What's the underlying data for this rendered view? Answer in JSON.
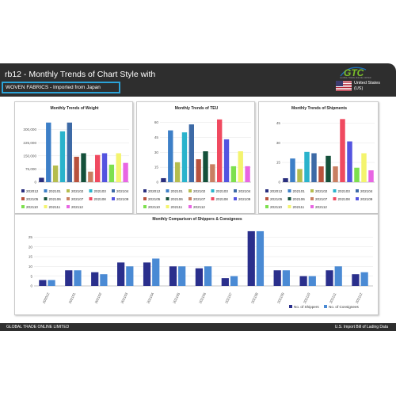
{
  "header": {
    "title": "rb12 - Monthly Trends of Chart Style with",
    "subtitle": "WOVEN FABRICS - Imported from Japan",
    "logo_text": "GTC",
    "logo_tagline": "GLOBAL TRADE ONLINE LIMITED",
    "country_line1": "United States",
    "country_line2": "(US)"
  },
  "footer": {
    "left": "GLOBAL TRADE ONLINE LIMITED",
    "right": "U.S. Import Bill of Lading Data"
  },
  "colors": {
    "header_bg": "#2e2e2e",
    "subtitle_border": "#2ba3d8",
    "logo_green": "#7bbf2a",
    "logo_blue": "#1f6fb5"
  },
  "chart_data": [
    {
      "type": "bar",
      "title": "Monthly Trends of Weight",
      "categories": [
        "202012",
        "202101",
        "202102",
        "202103",
        "202104",
        "202105",
        "202106",
        "202107",
        "202108",
        "202109",
        "202110",
        "202111",
        "202112"
      ],
      "colors": [
        "#2a2f7e",
        "#3d7fc7",
        "#b5bd4e",
        "#2ab3cc",
        "#3d6aa6",
        "#b8523d",
        "#14503a",
        "#c97f62",
        "#f04a60",
        "#5454e0",
        "#7de04e",
        "#f4f46e",
        "#e866e3"
      ],
      "values": [
        25000,
        340000,
        95000,
        290000,
        340000,
        145000,
        165000,
        60000,
        155000,
        165000,
        100000,
        165000,
        110000
      ],
      "ylim": [
        0,
        375000
      ],
      "yticks": [
        0,
        75000,
        150000,
        225000,
        300000
      ],
      "ytick_labels": [
        "0",
        "75,000",
        "150,000",
        "225,000",
        "300,000"
      ]
    },
    {
      "type": "bar",
      "title": "Monthly Trends of TEU",
      "categories": [
        "202012",
        "202101",
        "202102",
        "202103",
        "202104",
        "202105",
        "202106",
        "202107",
        "202108",
        "202109",
        "202110",
        "202111",
        "202112"
      ],
      "colors": [
        "#2a2f7e",
        "#3d7fc7",
        "#b5bd4e",
        "#2ab3cc",
        "#3d6aa6",
        "#b8523d",
        "#14503a",
        "#c97f62",
        "#f04a60",
        "#5454e0",
        "#7de04e",
        "#f4f46e",
        "#e866e3"
      ],
      "values": [
        4,
        52,
        20,
        50,
        58,
        23,
        31,
        18,
        63,
        43,
        16,
        31,
        16
      ],
      "ylim": [
        0,
        66
      ],
      "yticks": [
        0,
        15,
        30,
        45,
        60
      ],
      "ytick_labels": [
        "0",
        "15",
        "30",
        "45",
        "60"
      ]
    },
    {
      "type": "bar",
      "title": "Monthly Trends of Shipments",
      "categories": [
        "202012",
        "202101",
        "202102",
        "202103",
        "202104",
        "202105",
        "202106",
        "202107",
        "202108",
        "202109",
        "202110",
        "202111",
        "202112"
      ],
      "colors": [
        "#2a2f7e",
        "#3d7fc7",
        "#b5bd4e",
        "#2ab3cc",
        "#3d6aa6",
        "#b8523d",
        "#14503a",
        "#c97f62",
        "#f04a60",
        "#5454e0",
        "#7de04e",
        "#f4f46e",
        "#e866e3"
      ],
      "values": [
        3,
        18,
        10,
        23,
        22,
        12,
        20,
        12,
        48,
        31,
        11,
        22,
        9
      ],
      "ylim": [
        0,
        50
      ],
      "yticks": [
        0,
        15,
        30,
        45
      ],
      "ytick_labels": [
        "0",
        "15",
        "30",
        "45"
      ]
    },
    {
      "type": "bar",
      "title": "Monthly Comparison of Shippers & Consignees",
      "categories": [
        "202012",
        "202101",
        "202102",
        "202103",
        "202104",
        "202105",
        "202106",
        "202107",
        "202108",
        "202109",
        "202110",
        "202111",
        "202112"
      ],
      "series": [
        {
          "name": "No. of Shippers",
          "color": "#2a2f8c",
          "values": [
            3,
            8,
            7,
            12,
            12,
            10,
            9,
            4,
            28,
            8,
            5,
            8,
            6
          ]
        },
        {
          "name": "No. of Consignees",
          "color": "#4a8ad4",
          "values": [
            3,
            8,
            6,
            10,
            14,
            10,
            10,
            5,
            28,
            8,
            5,
            10,
            7
          ]
        }
      ],
      "ylim": [
        0,
        30
      ],
      "yticks": [
        0,
        5,
        10,
        15,
        20,
        25
      ],
      "ytick_labels": [
        "0",
        "5",
        "10",
        "15",
        "20",
        "25"
      ]
    }
  ]
}
